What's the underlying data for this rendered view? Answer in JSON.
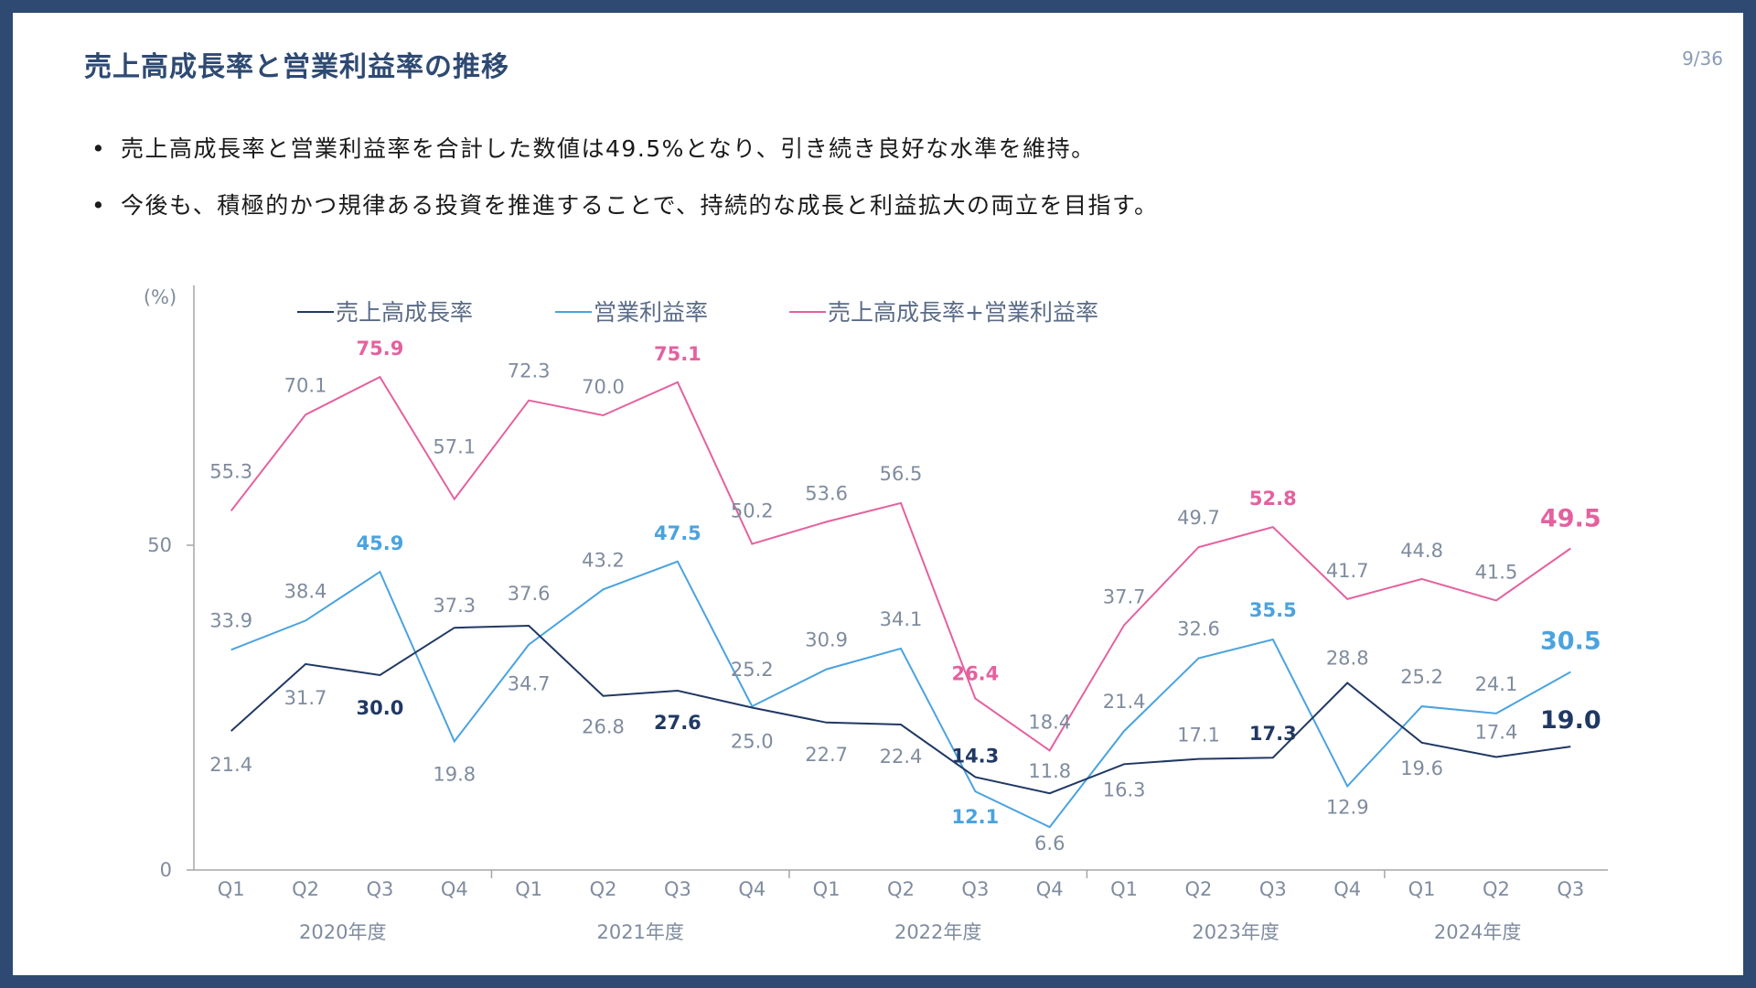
{
  "slide": {
    "title": "売上高成長率と営業利益率の推移",
    "page_number": "9/36",
    "bullets": [
      "売上高成長率と営業利益率を合計した数値は49.5%となり、引き続き良好な水準を維持。",
      "今後も、積極的かつ規律ある投資を推進することで、持続的な成長と利益拡大の両立を目指す。"
    ]
  },
  "colors": {
    "frame": "#2e4a73",
    "revenue_growth": "#203864",
    "operating_margin": "#4aa3df",
    "combined": "#e4619f",
    "label_gray": "#7f8c9e",
    "axis": "#a6a6a6"
  },
  "chart_data": {
    "type": "line",
    "ylabel": "(%)",
    "ylim": [
      0,
      90
    ],
    "yticks": [
      0,
      50
    ],
    "grid": false,
    "legend_position": "top",
    "categories": [
      "Q1",
      "Q2",
      "Q3",
      "Q4",
      "Q1",
      "Q2",
      "Q3",
      "Q4",
      "Q1",
      "Q2",
      "Q3",
      "Q4",
      "Q1",
      "Q2",
      "Q3",
      "Q4",
      "Q1",
      "Q2",
      "Q3"
    ],
    "fiscal_years": [
      {
        "label": "2020年度",
        "start": 0,
        "end": 3
      },
      {
        "label": "2021年度",
        "start": 4,
        "end": 7
      },
      {
        "label": "2022年度",
        "start": 8,
        "end": 11
      },
      {
        "label": "2023年度",
        "start": 12,
        "end": 15
      },
      {
        "label": "2024年度",
        "start": 16,
        "end": 18
      }
    ],
    "series": [
      {
        "key": "revenue_growth",
        "name": "売上高成長率",
        "values": [
          21.4,
          31.7,
          30.0,
          37.3,
          37.6,
          26.8,
          27.6,
          25.0,
          22.7,
          22.4,
          14.3,
          11.8,
          16.3,
          17.1,
          17.3,
          28.8,
          19.6,
          17.4,
          19.0
        ],
        "labels": [
          "21.4",
          "31.7",
          "30.0",
          "37.3",
          "37.6",
          "26.8",
          "27.6",
          "25.0",
          "22.7",
          "22.4",
          "14.3",
          "11.8",
          "16.3",
          "17.1",
          "17.3",
          "28.8",
          "19.6",
          "17.4",
          "19.0"
        ],
        "highlight": [
          2,
          6,
          10,
          14,
          18
        ]
      },
      {
        "key": "operating_margin",
        "name": "営業利益率",
        "values": [
          33.9,
          38.4,
          45.9,
          19.8,
          34.7,
          43.2,
          47.5,
          25.2,
          30.9,
          34.1,
          12.1,
          6.6,
          21.4,
          32.6,
          35.5,
          12.9,
          25.2,
          24.1,
          30.5
        ],
        "labels": [
          "33.9",
          "38.4",
          "45.9",
          "19.8",
          "34.7",
          "43.2",
          "47.5",
          "25.2",
          "30.9",
          "34.1",
          "12.1",
          "6.6",
          "21.4",
          "32.6",
          "35.5",
          "12.9",
          "25.2",
          "24.1",
          "30.5"
        ],
        "highlight": [
          2,
          6,
          10,
          14,
          18
        ]
      },
      {
        "key": "combined",
        "name": "売上高成長率+営業利益率",
        "values": [
          55.3,
          70.1,
          75.9,
          57.1,
          72.3,
          70.0,
          75.1,
          50.2,
          53.6,
          56.5,
          26.4,
          18.4,
          37.7,
          49.7,
          52.8,
          41.7,
          44.8,
          41.5,
          49.5
        ],
        "labels": [
          "55.3",
          "70.1",
          "75.9",
          "57.1",
          "72.3",
          "70.0",
          "75.1",
          "50.2",
          "53.6",
          "56.5",
          "26.4",
          "18.4",
          "37.7",
          "49.7",
          "52.8",
          "41.7",
          "44.8",
          "41.5",
          "49.5"
        ],
        "highlight": [
          2,
          6,
          10,
          14,
          18
        ]
      }
    ]
  }
}
